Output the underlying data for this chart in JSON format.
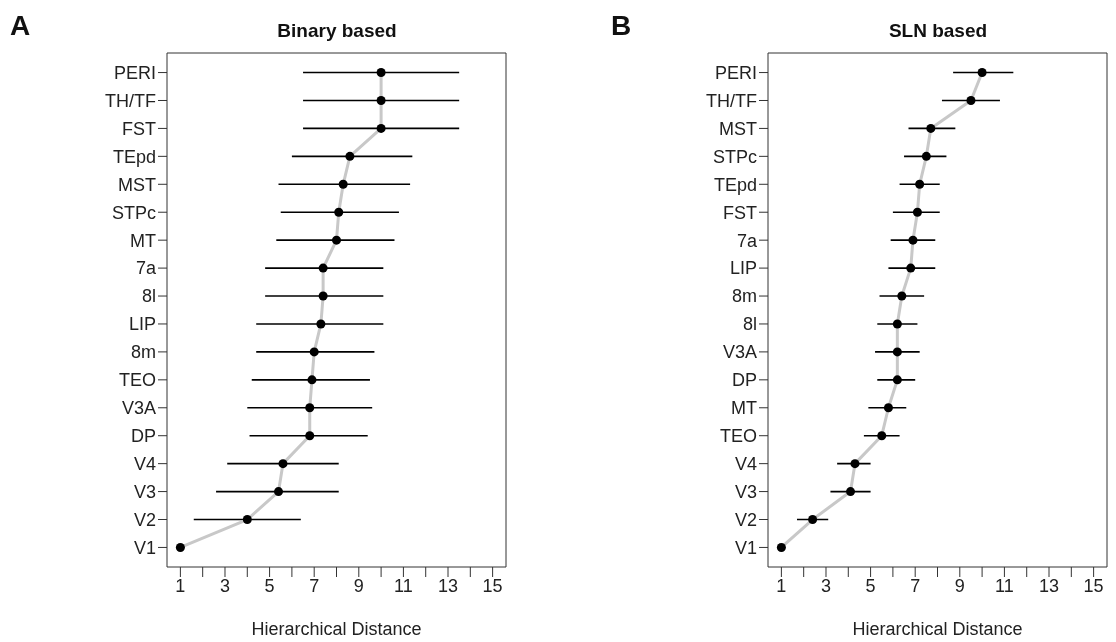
{
  "chart_data": [
    {
      "type": "scatter",
      "title": "Binary based",
      "annotations": [
        "A"
      ],
      "xlabel": "Hierarchical Distance",
      "orientation": "horizontal",
      "marker": "circle",
      "grid": false,
      "legend": false,
      "categories": [
        "PERI",
        "TH/TF",
        "FST",
        "TEpd",
        "MST",
        "STPc",
        "MT",
        "7a",
        "8l",
        "LIP",
        "8m",
        "TEO",
        "V3A",
        "DP",
        "V4",
        "V3",
        "V2",
        "V1"
      ],
      "xlim": [
        0.4,
        15.6
      ],
      "xticks": [
        1,
        {
          "value": 2,
          "label": null
        },
        3,
        {
          "value": 4,
          "label": null
        },
        5,
        {
          "value": 6,
          "label": null
        },
        7,
        {
          "value": 8,
          "label": null
        },
        9,
        {
          "value": 10,
          "label": null
        },
        11,
        {
          "value": 12,
          "label": null
        },
        13,
        {
          "value": 14,
          "label": null
        },
        15
      ],
      "series": [
        {
          "type": "line",
          "color": "#c8c8c8",
          "marker": "none",
          "values": [
            10,
            10,
            10,
            8.6,
            8.3,
            8.1,
            8.0,
            7.4,
            7.4,
            7.3,
            7.0,
            6.9,
            6.8,
            6.8,
            5.6,
            5.4,
            4.0,
            1
          ]
        },
        {
          "color": "#000000",
          "values": [
            10,
            10,
            10,
            8.6,
            8.3,
            8.1,
            8.0,
            7.4,
            7.4,
            7.3,
            7.0,
            6.9,
            6.8,
            6.8,
            5.6,
            5.4,
            4.0,
            1
          ],
          "errors": [
            [
              6.5,
              13.5
            ],
            [
              6.5,
              13.5
            ],
            [
              6.5,
              13.5
            ],
            [
              6.0,
              11.4
            ],
            [
              5.4,
              11.3
            ],
            [
              5.5,
              10.8
            ],
            [
              5.3,
              10.6
            ],
            [
              4.8,
              10.1
            ],
            [
              4.8,
              10.1
            ],
            [
              4.4,
              10.1
            ],
            [
              4.4,
              9.7
            ],
            [
              4.2,
              9.5
            ],
            [
              4.0,
              9.6
            ],
            [
              4.1,
              9.4
            ],
            [
              3.1,
              8.1
            ],
            [
              2.6,
              8.1
            ],
            [
              1.6,
              6.4
            ],
            null
          ]
        }
      ]
    },
    {
      "type": "scatter",
      "title": "SLN based",
      "annotations": [
        "B"
      ],
      "xlabel": "Hierarchical Distance",
      "orientation": "horizontal",
      "marker": "circle",
      "grid": false,
      "legend": false,
      "categories": [
        "PERI",
        "TH/TF",
        "MST",
        "STPc",
        "TEpd",
        "FST",
        "7a",
        "LIP",
        "8m",
        "8l",
        "V3A",
        "DP",
        "MT",
        "TEO",
        "V4",
        "V3",
        "V2",
        "V1"
      ],
      "xlim": [
        0.4,
        15.6
      ],
      "xticks": [
        1,
        {
          "value": 2,
          "label": null
        },
        3,
        {
          "value": 4,
          "label": null
        },
        5,
        {
          "value": 6,
          "label": null
        },
        7,
        {
          "value": 8,
          "label": null
        },
        9,
        {
          "value": 10,
          "label": null
        },
        11,
        {
          "value": 12,
          "label": null
        },
        13,
        {
          "value": 14,
          "label": null
        },
        15
      ],
      "series": [
        {
          "type": "line",
          "color": "#c8c8c8",
          "marker": "none",
          "values": [
            10.0,
            9.5,
            7.7,
            7.5,
            7.2,
            7.1,
            6.9,
            6.8,
            6.4,
            6.2,
            6.2,
            6.2,
            5.8,
            5.5,
            4.3,
            4.1,
            2.4,
            1
          ]
        },
        {
          "color": "#000000",
          "values": [
            10.0,
            9.5,
            7.7,
            7.5,
            7.2,
            7.1,
            6.9,
            6.8,
            6.4,
            6.2,
            6.2,
            6.2,
            5.8,
            5.5,
            4.3,
            4.1,
            2.4,
            1
          ],
          "errors": [
            [
              8.7,
              11.4
            ],
            [
              8.2,
              10.8
            ],
            [
              6.7,
              8.8
            ],
            [
              6.5,
              8.4
            ],
            [
              6.3,
              8.1
            ],
            [
              6.0,
              8.1
            ],
            [
              5.9,
              7.9
            ],
            [
              5.8,
              7.9
            ],
            [
              5.4,
              7.4
            ],
            [
              5.3,
              7.1
            ],
            [
              5.2,
              7.2
            ],
            [
              5.3,
              7.0
            ],
            [
              4.9,
              6.6
            ],
            [
              4.7,
              6.3
            ],
            [
              3.5,
              5.0
            ],
            [
              3.2,
              5.0
            ],
            [
              1.7,
              3.1
            ],
            null
          ]
        }
      ]
    }
  ]
}
